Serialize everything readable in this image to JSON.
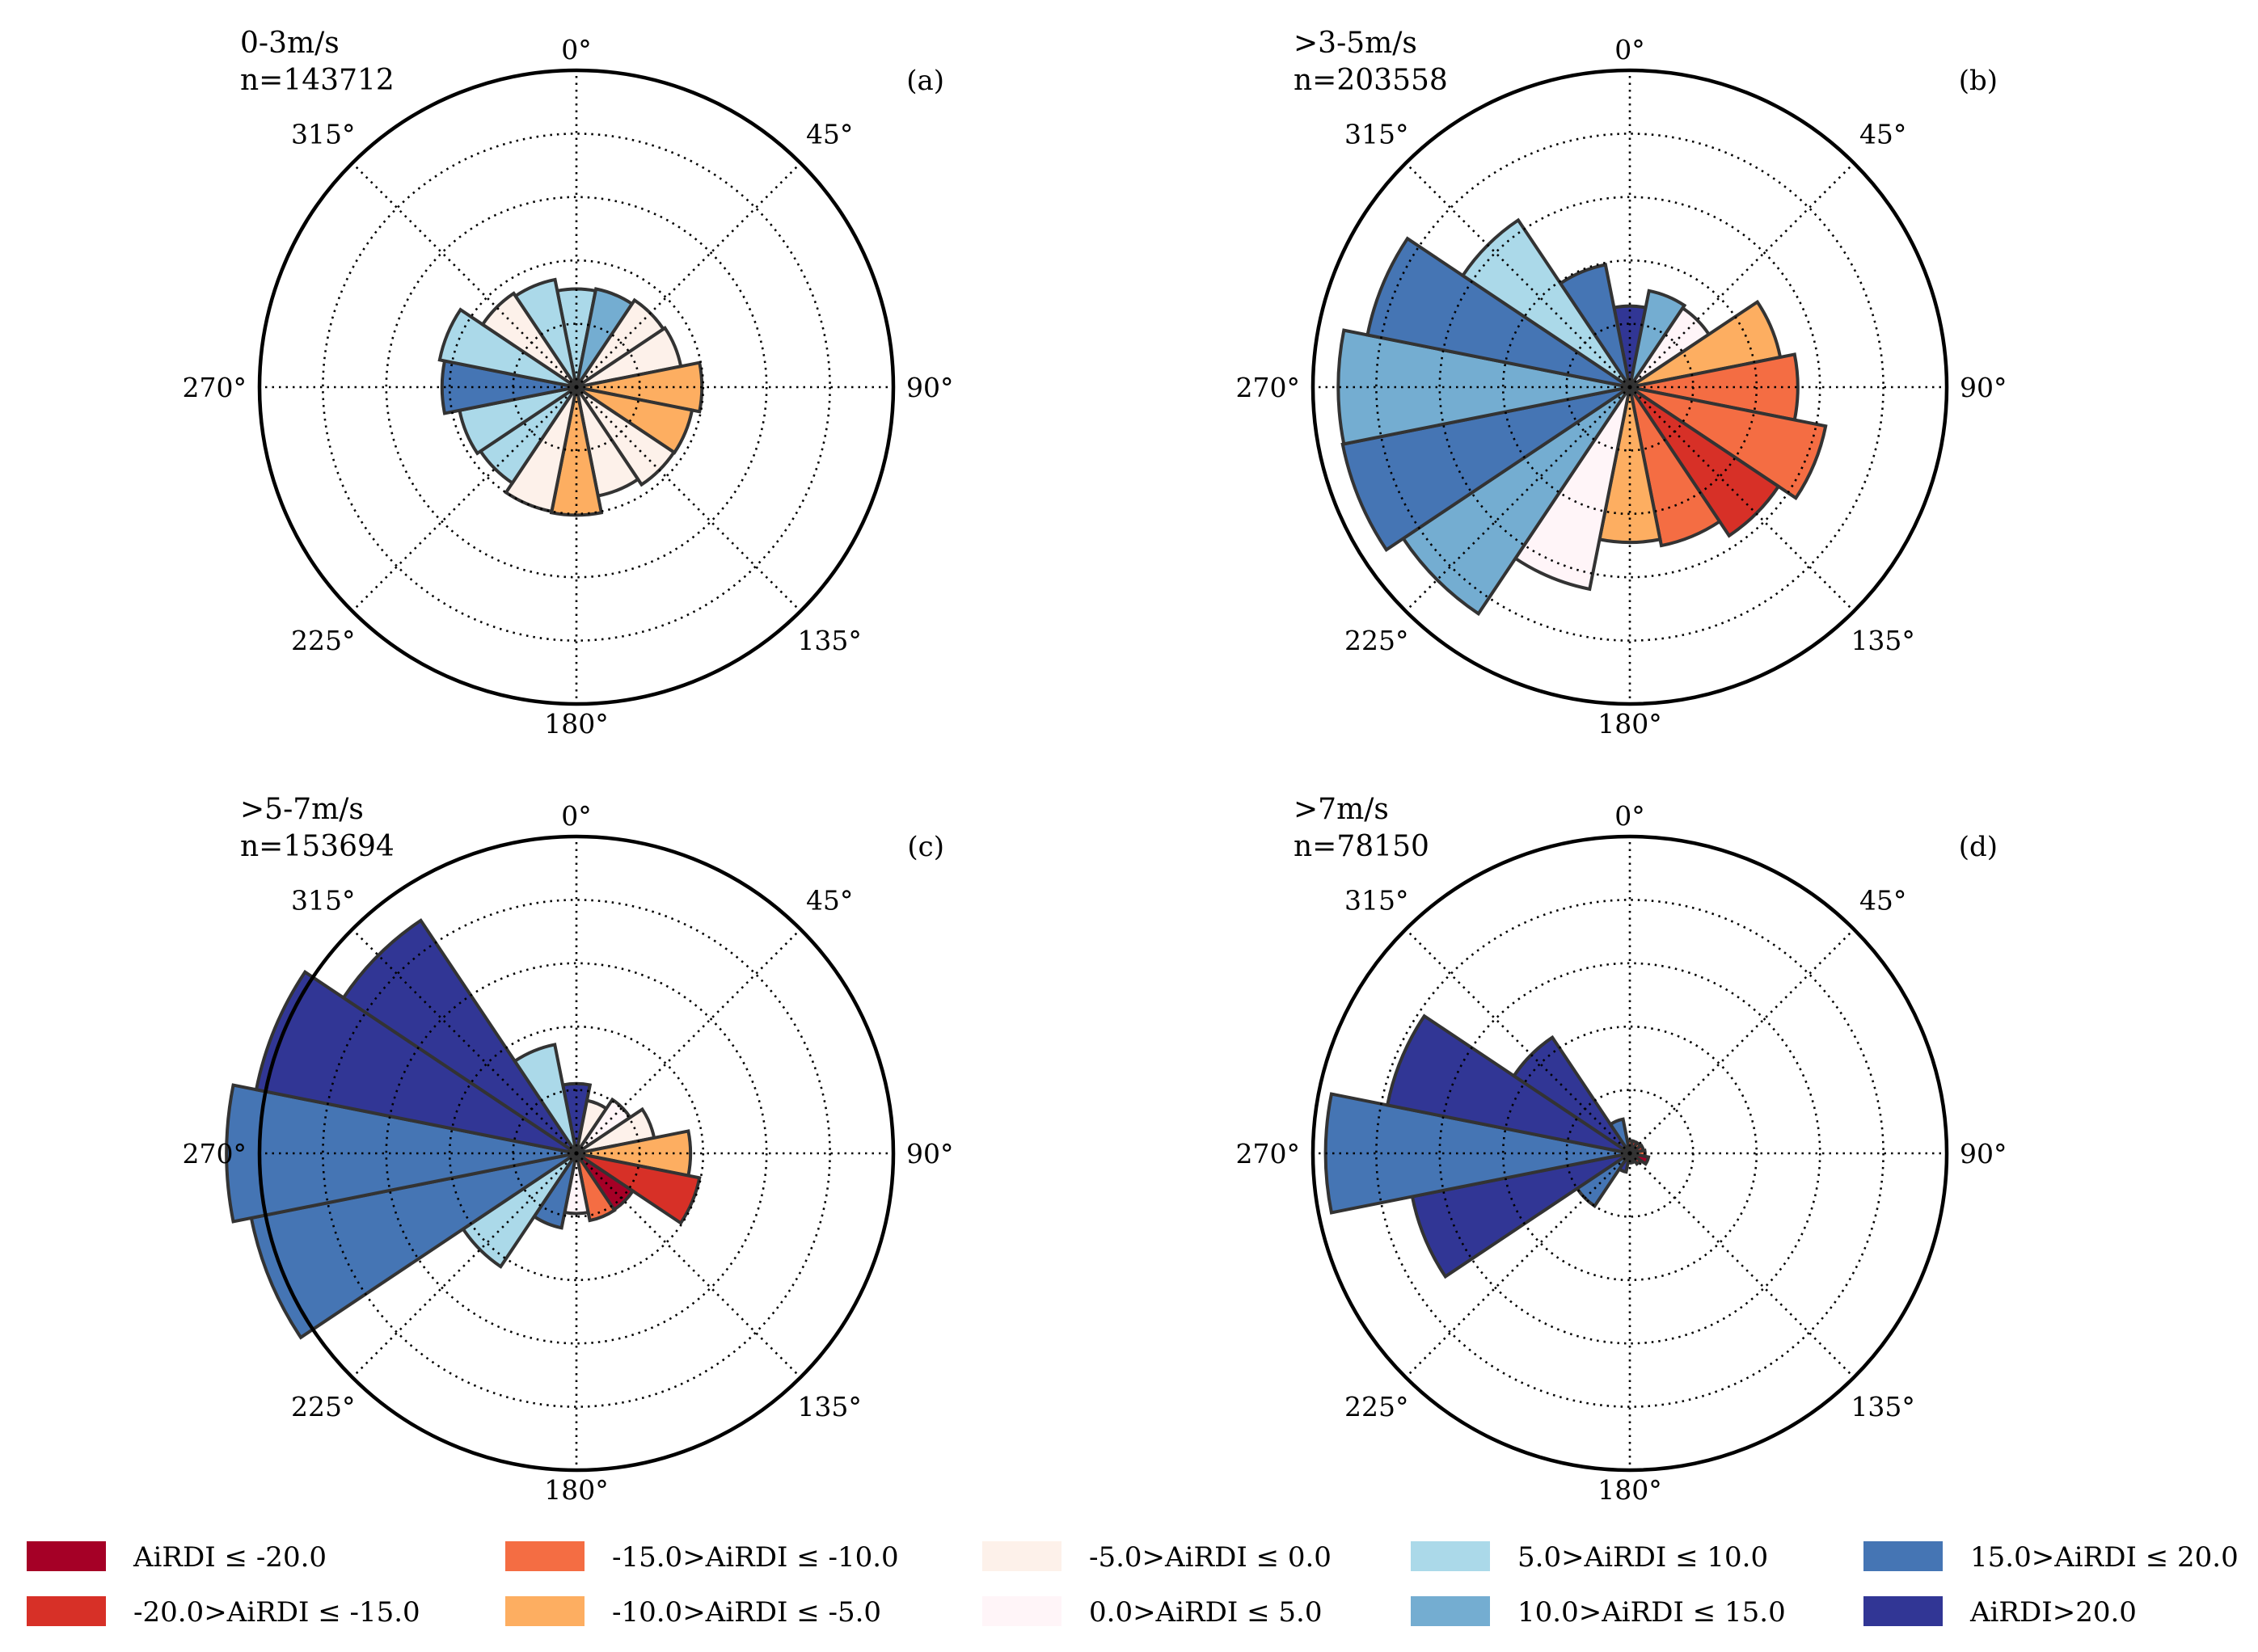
{
  "legend": [
    {
      "label": "AiRDI ≤ -20.0",
      "color": "#a50026"
    },
    {
      "label": "-20.0>AiRDI ≤ -15.0",
      "color": "#d73027"
    },
    {
      "label": "-15.0>AiRDI ≤ -10.0",
      "color": "#f46d43"
    },
    {
      "label": "-10.0>AiRDI ≤ -5.0",
      "color": "#fdae61"
    },
    {
      "label": "-5.0>AiRDI ≤ 0.0",
      "color": "#fdf1ea"
    },
    {
      "label": "0.0>AiRDI ≤ 5.0",
      "color": "#fff5f8"
    },
    {
      "label": "5.0>AiRDI ≤ 10.0",
      "color": "#abd9e9"
    },
    {
      "label": "10.0>AiRDI ≤ 15.0",
      "color": "#74add1"
    },
    {
      "label": "15.0>AiRDI ≤ 20.0",
      "color": "#4575b4"
    },
    {
      "label": "AiRDI>20.0",
      "color": "#313695"
    }
  ],
  "chart_data": [
    {
      "type": "polar-bar",
      "title": "0-3m/s",
      "count_label": "n=143712",
      "panel_label": "(a)",
      "angle_labels": [
        "0°",
        "45°",
        "90°",
        "135°",
        "180°",
        "225°",
        "270°",
        "315°"
      ],
      "r_max": 5,
      "r_grid": [
        1,
        2,
        3,
        4
      ],
      "sector_width_deg": 22.5,
      "bars": [
        {
          "dir": 0,
          "r": 1.55,
          "cls": 6
        },
        {
          "dir": 22.5,
          "r": 1.58,
          "cls": 7
        },
        {
          "dir": 45,
          "r": 1.65,
          "cls": 4
        },
        {
          "dir": 67.5,
          "r": 1.68,
          "cls": 4
        },
        {
          "dir": 90,
          "r": 1.98,
          "cls": 3
        },
        {
          "dir": 112.5,
          "r": 1.86,
          "cls": 3
        },
        {
          "dir": 135,
          "r": 1.85,
          "cls": 4
        },
        {
          "dir": 157.5,
          "r": 1.75,
          "cls": 4
        },
        {
          "dir": 180,
          "r": 2.02,
          "cls": 3
        },
        {
          "dir": 202.5,
          "r": 2.0,
          "cls": 4
        },
        {
          "dir": 225,
          "r": 1.82,
          "cls": 6
        },
        {
          "dir": 247.5,
          "r": 1.88,
          "cls": 6
        },
        {
          "dir": 270,
          "r": 2.12,
          "cls": 8
        },
        {
          "dir": 292.5,
          "r": 2.2,
          "cls": 6
        },
        {
          "dir": 315,
          "r": 1.78,
          "cls": 4
        },
        {
          "dir": 337.5,
          "r": 1.73,
          "cls": 6
        }
      ]
    },
    {
      "type": "polar-bar",
      "title": ">3-5m/s",
      "count_label": "n=203558",
      "panel_label": "(b)",
      "angle_labels": [
        "0°",
        "45°",
        "90°",
        "135°",
        "180°",
        "225°",
        "270°",
        "315°"
      ],
      "r_max": 5,
      "r_grid": [
        1,
        2,
        3,
        4
      ],
      "sector_width_deg": 22.5,
      "bars": [
        {
          "dir": 0,
          "r": 1.28,
          "cls": 9
        },
        {
          "dir": 22.5,
          "r": 1.55,
          "cls": 7
        },
        {
          "dir": 45,
          "r": 1.5,
          "cls": 5
        },
        {
          "dir": 67.5,
          "r": 2.42,
          "cls": 3
        },
        {
          "dir": 90,
          "r": 2.65,
          "cls": 2
        },
        {
          "dir": 112.5,
          "r": 3.15,
          "cls": 2
        },
        {
          "dir": 135,
          "r": 2.82,
          "cls": 1
        },
        {
          "dir": 157.5,
          "r": 2.55,
          "cls": 2
        },
        {
          "dir": 180,
          "r": 2.45,
          "cls": 3
        },
        {
          "dir": 202.5,
          "r": 3.25,
          "cls": 5
        },
        {
          "dir": 225,
          "r": 4.3,
          "cls": 7
        },
        {
          "dir": 247.5,
          "r": 4.62,
          "cls": 8
        },
        {
          "dir": 270,
          "r": 4.6,
          "cls": 7
        },
        {
          "dir": 292.5,
          "r": 4.22,
          "cls": 8
        },
        {
          "dir": 315,
          "r": 3.17,
          "cls": 6
        },
        {
          "dir": 337.5,
          "r": 1.97,
          "cls": 8
        }
      ]
    },
    {
      "type": "polar-bar",
      "title": ">5-7m/s",
      "count_label": "n=153694",
      "panel_label": "(c)",
      "angle_labels": [
        "0°",
        "45°",
        "90°",
        "135°",
        "180°",
        "225°",
        "270°",
        "315°"
      ],
      "r_max": 5,
      "r_grid": [
        1,
        2,
        3,
        4
      ],
      "sector_width_deg": 22.5,
      "bars": [
        {
          "dir": 0,
          "r": 1.1,
          "cls": 9
        },
        {
          "dir": 22.5,
          "r": 0.85,
          "cls": 4
        },
        {
          "dir": 45,
          "r": 1.02,
          "cls": 5
        },
        {
          "dir": 67.5,
          "r": 1.25,
          "cls": 4
        },
        {
          "dir": 90,
          "r": 1.8,
          "cls": 3
        },
        {
          "dir": 112.5,
          "r": 1.98,
          "cls": 1
        },
        {
          "dir": 135,
          "r": 1.07,
          "cls": 0
        },
        {
          "dir": 157.5,
          "r": 1.08,
          "cls": 2
        },
        {
          "dir": 180,
          "r": 0.95,
          "cls": 5
        },
        {
          "dir": 202.5,
          "r": 1.2,
          "cls": 8
        },
        {
          "dir": 225,
          "r": 2.15,
          "cls": 6
        },
        {
          "dir": 247.5,
          "r": 5.23,
          "cls": 8
        },
        {
          "dir": 270,
          "r": 5.52,
          "cls": 8
        },
        {
          "dir": 292.5,
          "r": 5.15,
          "cls": 9
        },
        {
          "dir": 315,
          "r": 4.42,
          "cls": 9
        },
        {
          "dir": 337.5,
          "r": 1.75,
          "cls": 6
        }
      ]
    },
    {
      "type": "polar-bar",
      "title": ">7m/s",
      "count_label": "n=78150",
      "panel_label": "(d)",
      "angle_labels": [
        "0°",
        "45°",
        "90°",
        "135°",
        "180°",
        "225°",
        "270°",
        "315°"
      ],
      "r_max": 5,
      "r_grid": [
        1,
        2,
        3,
        4
      ],
      "sector_width_deg": 22.5,
      "bars": [
        {
          "dir": 0,
          "r": 0.2,
          "cls": 2
        },
        {
          "dir": 22.5,
          "r": 0.2,
          "cls": 1
        },
        {
          "dir": 45,
          "r": 0.2,
          "cls": 2
        },
        {
          "dir": 67.5,
          "r": 0.22,
          "cls": 1
        },
        {
          "dir": 90,
          "r": 0.24,
          "cls": 2
        },
        {
          "dir": 112.5,
          "r": 0.3,
          "cls": 0
        },
        {
          "dir": 135,
          "r": 0.2,
          "cls": 1
        },
        {
          "dir": 157.5,
          "r": 0.15,
          "cls": 2
        },
        {
          "dir": 180,
          "r": 0.15,
          "cls": 2
        },
        {
          "dir": 202.5,
          "r": 0.3,
          "cls": 9
        },
        {
          "dir": 225,
          "r": 1.0,
          "cls": 8
        },
        {
          "dir": 247.5,
          "r": 3.5,
          "cls": 9
        },
        {
          "dir": 270,
          "r": 4.8,
          "cls": 8
        },
        {
          "dir": 292.5,
          "r": 3.9,
          "cls": 9
        },
        {
          "dir": 315,
          "r": 2.2,
          "cls": 9
        },
        {
          "dir": 337.5,
          "r": 0.55,
          "cls": 8
        }
      ]
    }
  ]
}
